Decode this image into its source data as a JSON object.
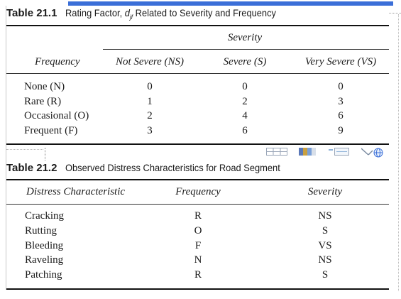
{
  "table1": {
    "number": "Table 21.1",
    "caption_a": "Rating Factor, ",
    "caption_var": "d",
    "caption_sub": "jf",
    "caption_b": " Related to Severity and Frequency",
    "group_header": "Severity",
    "col_headers": [
      "Frequency",
      "Not Severe (NS)",
      "Severe (S)",
      "Very Severe (VS)"
    ],
    "rows": [
      [
        "None (N)",
        "0",
        "0",
        "0"
      ],
      [
        "Rare (R)",
        "1",
        "2",
        "3"
      ],
      [
        "Occasional (O)",
        "2",
        "4",
        "6"
      ],
      [
        "Frequent (F)",
        "3",
        "6",
        "9"
      ]
    ]
  },
  "table2": {
    "number": "Table 21.2",
    "caption": "Observed Distress Characteristics for Road Segment",
    "col_headers": [
      "Distress Characteristic",
      "Frequency",
      "Severity"
    ],
    "rows": [
      [
        "Cracking",
        "R",
        "NS"
      ],
      [
        "Rutting",
        "O",
        "S"
      ],
      [
        "Bleeding",
        "F",
        "VS"
      ],
      [
        "Raveling",
        "N",
        "NS"
      ],
      [
        "Patching",
        "R",
        "S"
      ]
    ]
  },
  "colors": {
    "accent_bar": "#3b6fd8",
    "rule": "#111111"
  },
  "icons": [
    "table-layout-icon",
    "color-swatch-icon",
    "text-box-icon",
    "pen-globe-icon"
  ]
}
